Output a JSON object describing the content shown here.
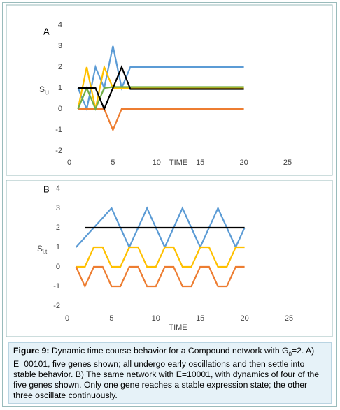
{
  "chart_data": [
    {
      "type": "line",
      "label": "A",
      "ylabel": {
        "main": "S",
        "sub": "i,t"
      },
      "xlabel": "TIME",
      "x": [
        1,
        2,
        3,
        4,
        5,
        6,
        7,
        8,
        9,
        10,
        11,
        12,
        13,
        14,
        15,
        16,
        17,
        18,
        19,
        20
      ],
      "series": [
        {
          "color": "#5b9bd5",
          "values": [
            1,
            0,
            2,
            1,
            3,
            1,
            2,
            2,
            2,
            2,
            2,
            2,
            2,
            2,
            2,
            2,
            2,
            2,
            2,
            2
          ]
        },
        {
          "color": "#ed7d31",
          "values": [
            0,
            0,
            0,
            0,
            -1,
            0,
            0,
            0,
            0,
            0,
            0,
            0,
            0,
            0,
            0,
            0,
            0,
            0,
            0,
            0
          ]
        },
        {
          "color": "#ffc000",
          "values": [
            0,
            2,
            0,
            2,
            1,
            1,
            1,
            1,
            1,
            1,
            1,
            1,
            1,
            1,
            1,
            1,
            1,
            1,
            1,
            1
          ]
        },
        {
          "color": "#70ad47",
          "values": [
            0,
            1,
            0,
            1,
            1.05,
            1.05,
            1.05,
            1.05,
            1.05,
            1.05,
            1.05,
            1.05,
            1.05,
            1.05,
            1.05,
            1.05,
            1.05,
            1.05,
            1.05,
            1.05
          ]
        },
        {
          "color": "#000000",
          "values": [
            1,
            1,
            1,
            0,
            1,
            2,
            0.95,
            0.95,
            0.95,
            0.95,
            0.95,
            0.95,
            0.95,
            0.95,
            0.95,
            0.95,
            0.95,
            0.95,
            0.95,
            0.95
          ]
        }
      ],
      "xlim": [
        0,
        25
      ],
      "xticks": [
        0,
        5,
        10,
        15,
        20,
        25
      ],
      "ylim": [
        -2,
        4
      ],
      "yticks": [
        -2,
        -1,
        0,
        1,
        2,
        3,
        4
      ],
      "grid": false
    },
    {
      "type": "line",
      "label": "B",
      "ylabel": {
        "main": "S",
        "sub": "i,t"
      },
      "xlabel": "TIME",
      "x": [
        1,
        2,
        3,
        4,
        5,
        6,
        7,
        8,
        9,
        10,
        11,
        12,
        13,
        14,
        15,
        16,
        17,
        18,
        19,
        20
      ],
      "series": [
        {
          "color": "#5b9bd5",
          "values": [
            1,
            1.5,
            2,
            2.5,
            3,
            2,
            1,
            2,
            3,
            2,
            1,
            2,
            3,
            2,
            1,
            2,
            3,
            2,
            1,
            2
          ]
        },
        {
          "color": "#000000",
          "values": [
            null,
            2,
            2,
            2,
            2,
            2,
            2,
            2,
            2,
            2,
            2,
            2,
            2,
            2,
            2,
            2,
            2,
            2,
            2,
            2
          ]
        },
        {
          "color": "#ffc000",
          "values": [
            0,
            0,
            1,
            1,
            0,
            0,
            1,
            1,
            0,
            0,
            1,
            1,
            0,
            0,
            1,
            1,
            0,
            0,
            1,
            1
          ]
        },
        {
          "color": "#ed7d31",
          "values": [
            0,
            -1,
            0,
            0,
            -1,
            -1,
            0,
            0,
            -1,
            -1,
            0,
            0,
            -1,
            -1,
            0,
            0,
            -1,
            -1,
            0,
            0
          ]
        }
      ],
      "xlim": [
        0,
        25
      ],
      "xticks": [
        0,
        5,
        10,
        15,
        20,
        25
      ],
      "ylim": [
        -2,
        4
      ],
      "yticks": [
        -2,
        -1,
        0,
        1,
        2,
        3,
        4
      ],
      "grid": false
    }
  ],
  "caption": {
    "label": "Figure 9:",
    "text_before_sub": " Dynamic time course behavior for a Compound network with G",
    "sub": "0",
    "text_after_sub": "=2. A) E=00101, five genes shown; all undergo early oscillations and then settle into stable behavior. B) The same network with E=10001, with dynamics of four of the five genes shown. Only one gene reaches a stable expression state; the other three oscillate continuously."
  }
}
